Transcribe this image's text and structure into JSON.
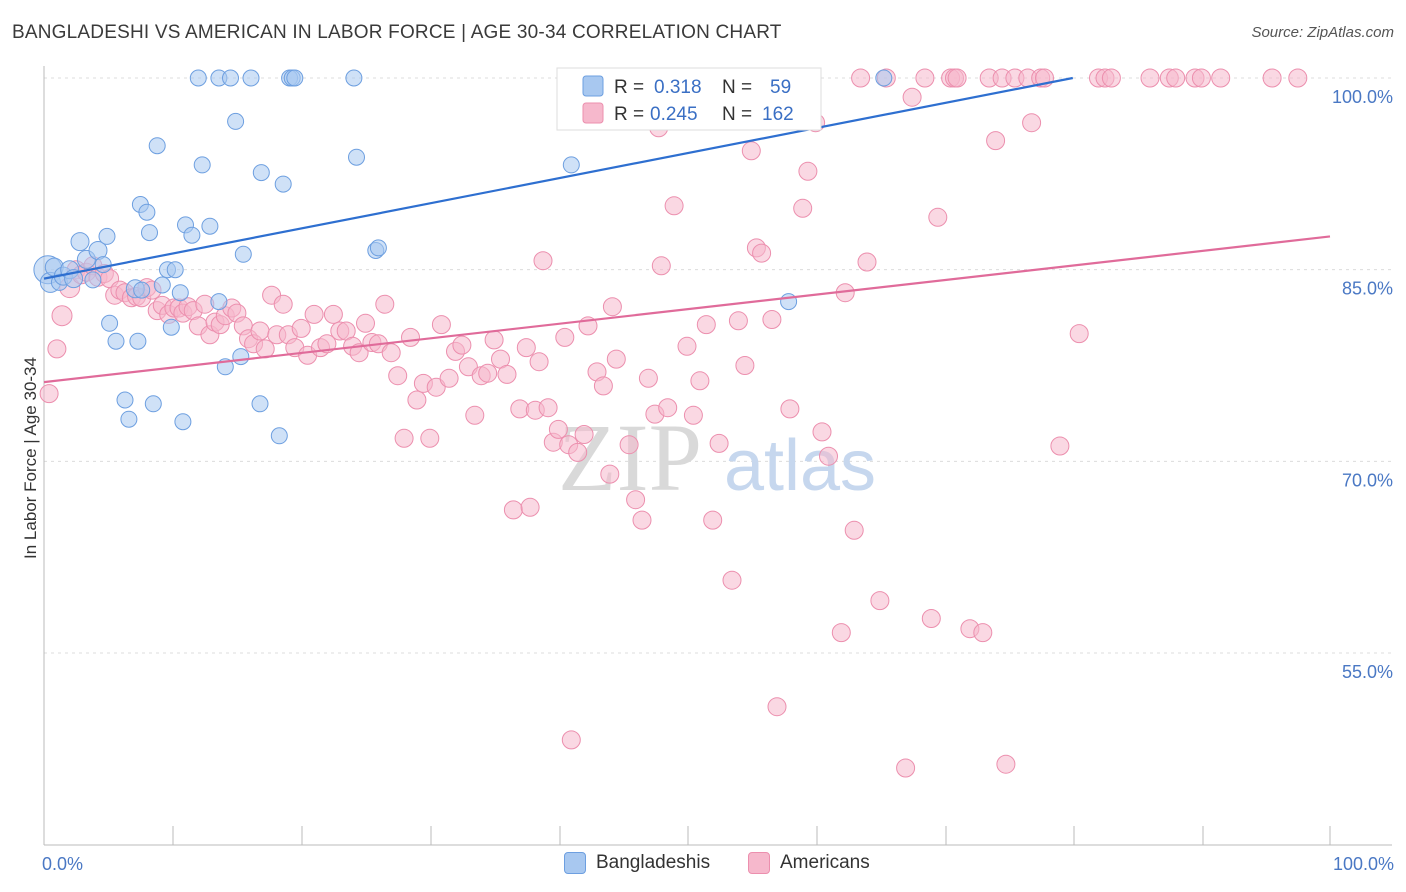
{
  "header": {
    "title": "BANGLADESHI VS AMERICAN IN LABOR FORCE | AGE 30-34 CORRELATION CHART",
    "source": "Source: ZipAtlas.com"
  },
  "watermark": {
    "zip": "ZIP",
    "atlas": "atlas"
  },
  "legend": {
    "r_label": "R =",
    "n_label": "N =",
    "series": [
      {
        "name": "Bangladeshis",
        "r": "0.318",
        "n": "59"
      },
      {
        "name": "Americans",
        "r": "0.245",
        "n": "162"
      }
    ]
  },
  "colors": {
    "blue_fill": "#a8c8f0",
    "blue_stroke": "#6d9fe0",
    "blue_line": "#2e6fd0",
    "pink_fill": "#f6b8cc",
    "pink_stroke": "#ec8fae",
    "pink_line": "#e06b9a",
    "tick": "#4a78c4"
  },
  "chart_data": {
    "type": "scatter",
    "title": "BANGLADESHI VS AMERICAN IN LABOR FORCE | AGE 30-34 CORRELATION CHART",
    "xlabel": "",
    "ylabel": "In Labor Force | Age 30-34",
    "xlim": [
      0,
      100
    ],
    "ylim": [
      40,
      102
    ],
    "x_tick_labels": [
      "0.0%",
      "100.0%"
    ],
    "y_ticks": [
      {
        "value": 100,
        "label": "100.0%"
      },
      {
        "value": 85,
        "label": "85.0%"
      },
      {
        "value": 70,
        "label": "70.0%"
      },
      {
        "value": 55,
        "label": "55.0%"
      }
    ],
    "series": [
      {
        "name": "Bangladeshis",
        "trend": {
          "x0": 0,
          "y0": 84.3,
          "x1": 80,
          "y1": 100
        },
        "points": [
          [
            0.3,
            85.0,
            14
          ],
          [
            0.5,
            84.0,
            10
          ],
          [
            0.8,
            85.2,
            9
          ],
          [
            1.2,
            84.0,
            8
          ],
          [
            1.5,
            84.5,
            9
          ],
          [
            2.0,
            85.0,
            9
          ],
          [
            2.3,
            84.3,
            9
          ],
          [
            2.8,
            87.2,
            9
          ],
          [
            3.3,
            85.8,
            9
          ],
          [
            3.8,
            84.2,
            8
          ],
          [
            4.2,
            86.5,
            9
          ],
          [
            4.6,
            85.4,
            8
          ],
          [
            4.9,
            87.6,
            8
          ],
          [
            5.1,
            80.8,
            8
          ],
          [
            5.6,
            79.4,
            8
          ],
          [
            6.3,
            74.8,
            8
          ],
          [
            6.6,
            73.3,
            8
          ],
          [
            7.1,
            83.5,
            9
          ],
          [
            7.3,
            79.4,
            8
          ],
          [
            7.6,
            83.4,
            8
          ],
          [
            7.5,
            90.1,
            8
          ],
          [
            8.0,
            89.5,
            8
          ],
          [
            8.2,
            87.9,
            8
          ],
          [
            8.5,
            74.5,
            8
          ],
          [
            8.8,
            94.7,
            8
          ],
          [
            9.2,
            83.8,
            8
          ],
          [
            9.6,
            85.0,
            8
          ],
          [
            9.9,
            80.5,
            8
          ],
          [
            10.2,
            85.0,
            8
          ],
          [
            10.6,
            83.2,
            8
          ],
          [
            10.8,
            73.1,
            8
          ],
          [
            11.0,
            88.5,
            8
          ],
          [
            11.5,
            87.7,
            8
          ],
          [
            12.0,
            100.0,
            8
          ],
          [
            12.3,
            93.2,
            8
          ],
          [
            12.9,
            88.4,
            8
          ],
          [
            13.6,
            100.0,
            8
          ],
          [
            13.6,
            82.5,
            8
          ],
          [
            14.1,
            77.4,
            8
          ],
          [
            14.5,
            100.0,
            8
          ],
          [
            14.9,
            96.6,
            8
          ],
          [
            15.3,
            78.2,
            8
          ],
          [
            15.5,
            86.2,
            8
          ],
          [
            16.1,
            100.0,
            8
          ],
          [
            16.8,
            74.5,
            8
          ],
          [
            16.9,
            92.6,
            8
          ],
          [
            18.3,
            72.0,
            8
          ],
          [
            18.6,
            91.7,
            8
          ],
          [
            19.1,
            100.0,
            8
          ],
          [
            19.3,
            100.0,
            8
          ],
          [
            19.5,
            100.0,
            8
          ],
          [
            24.1,
            100.0,
            8
          ],
          [
            24.3,
            93.8,
            8
          ],
          [
            25.8,
            86.5,
            8
          ],
          [
            26.0,
            86.7,
            8
          ],
          [
            41.0,
            93.2,
            8
          ],
          [
            57.9,
            82.5,
            8
          ],
          [
            65.3,
            100.0,
            8
          ]
        ]
      },
      {
        "name": "Americans",
        "trend": {
          "x0": 0,
          "y0": 76.2,
          "x1": 100,
          "y1": 87.6
        },
        "points": [
          [
            0.4,
            75.3,
            9
          ],
          [
            1.0,
            78.8,
            9
          ],
          [
            1.4,
            81.4,
            10
          ],
          [
            2.0,
            83.6,
            10
          ],
          [
            2.5,
            85.0,
            9
          ],
          [
            2.9,
            84.6,
            9
          ],
          [
            3.3,
            84.8,
            9
          ],
          [
            3.8,
            85.3,
            9
          ],
          [
            4.2,
            84.4,
            9
          ],
          [
            4.7,
            84.7,
            9
          ],
          [
            5.1,
            84.3,
            9
          ],
          [
            5.5,
            83.0,
            9
          ],
          [
            5.9,
            83.4,
            9
          ],
          [
            6.3,
            83.2,
            9
          ],
          [
            6.8,
            82.8,
            9
          ],
          [
            7.2,
            82.9,
            9
          ],
          [
            7.6,
            82.8,
            9
          ],
          [
            8.0,
            83.6,
            9
          ],
          [
            8.4,
            83.4,
            9
          ],
          [
            8.8,
            81.8,
            9
          ],
          [
            9.2,
            82.2,
            9
          ],
          [
            9.7,
            81.5,
            9
          ],
          [
            10.1,
            82.0,
            9
          ],
          [
            10.5,
            82.0,
            9
          ],
          [
            10.8,
            81.6,
            9
          ],
          [
            11.2,
            82.1,
            9
          ],
          [
            11.6,
            81.8,
            9
          ],
          [
            12.0,
            80.6,
            9
          ],
          [
            12.5,
            82.3,
            9
          ],
          [
            12.9,
            79.9,
            9
          ],
          [
            13.3,
            80.9,
            9
          ],
          [
            13.7,
            80.7,
            9
          ],
          [
            14.1,
            81.4,
            9
          ],
          [
            14.6,
            82.0,
            9
          ],
          [
            15.0,
            81.6,
            9
          ],
          [
            15.5,
            80.6,
            9
          ],
          [
            15.9,
            79.6,
            9
          ],
          [
            16.3,
            79.2,
            9
          ],
          [
            16.8,
            80.2,
            9
          ],
          [
            17.2,
            78.8,
            9
          ],
          [
            17.7,
            83.0,
            9
          ],
          [
            18.1,
            79.9,
            9
          ],
          [
            18.6,
            82.3,
            9
          ],
          [
            19.0,
            79.9,
            9
          ],
          [
            19.5,
            78.9,
            9
          ],
          [
            20.0,
            80.4,
            9
          ],
          [
            20.5,
            78.3,
            9
          ],
          [
            21.0,
            81.5,
            9
          ],
          [
            21.5,
            78.9,
            9
          ],
          [
            22.0,
            79.2,
            9
          ],
          [
            22.5,
            81.5,
            9
          ],
          [
            23.0,
            80.2,
            9
          ],
          [
            23.5,
            80.2,
            9
          ],
          [
            24.0,
            79.0,
            9
          ],
          [
            24.5,
            78.5,
            9
          ],
          [
            25.0,
            80.8,
            9
          ],
          [
            25.5,
            79.3,
            9
          ],
          [
            26.0,
            79.2,
            9
          ],
          [
            26.5,
            82.3,
            9
          ],
          [
            27.0,
            78.5,
            9
          ],
          [
            27.5,
            76.7,
            9
          ],
          [
            28.0,
            71.8,
            9
          ],
          [
            28.5,
            79.7,
            9
          ],
          [
            29.0,
            74.8,
            9
          ],
          [
            29.5,
            76.1,
            9
          ],
          [
            30.0,
            71.8,
            9
          ],
          [
            30.5,
            75.8,
            9
          ],
          [
            30.9,
            80.7,
            9
          ],
          [
            31.5,
            76.5,
            9
          ],
          [
            32.0,
            78.6,
            9
          ],
          [
            32.5,
            79.1,
            9
          ],
          [
            33.0,
            77.4,
            9
          ],
          [
            33.5,
            73.6,
            9
          ],
          [
            34.0,
            76.7,
            9
          ],
          [
            34.5,
            76.9,
            9
          ],
          [
            35.0,
            79.5,
            9
          ],
          [
            35.5,
            78.0,
            9
          ],
          [
            36.0,
            76.8,
            9
          ],
          [
            36.5,
            66.2,
            9
          ],
          [
            37.0,
            74.1,
            9
          ],
          [
            37.5,
            78.9,
            9
          ],
          [
            37.8,
            66.4,
            9
          ],
          [
            38.2,
            74.0,
            9
          ],
          [
            38.5,
            77.8,
            9
          ],
          [
            38.8,
            85.7,
            9
          ],
          [
            39.2,
            74.2,
            9
          ],
          [
            39.6,
            71.5,
            9
          ],
          [
            40.0,
            72.5,
            9
          ],
          [
            40.5,
            79.7,
            9
          ],
          [
            40.8,
            71.3,
            9
          ],
          [
            41.0,
            48.2,
            9
          ],
          [
            41.5,
            70.7,
            9
          ],
          [
            42.0,
            72.1,
            9
          ],
          [
            42.3,
            80.6,
            9
          ],
          [
            43.0,
            77.0,
            9
          ],
          [
            43.5,
            75.9,
            9
          ],
          [
            44.0,
            69.0,
            9
          ],
          [
            44.2,
            82.1,
            9
          ],
          [
            44.5,
            78.0,
            9
          ],
          [
            45.5,
            71.3,
            9
          ],
          [
            46.0,
            67.0,
            9
          ],
          [
            46.5,
            65.4,
            9
          ],
          [
            47.0,
            76.5,
            9
          ],
          [
            47.5,
            73.7,
            9
          ],
          [
            47.8,
            96.1,
            9
          ],
          [
            48.0,
            85.3,
            9
          ],
          [
            48.5,
            74.2,
            9
          ],
          [
            49.0,
            90.0,
            9
          ],
          [
            50.0,
            79.0,
            9
          ],
          [
            50.5,
            73.6,
            9
          ],
          [
            51.0,
            76.3,
            9
          ],
          [
            51.5,
            80.7,
            9
          ],
          [
            52.0,
            65.4,
            9
          ],
          [
            52.5,
            71.4,
            9
          ],
          [
            53.0,
            100.0,
            9
          ],
          [
            53.5,
            60.7,
            9
          ],
          [
            54.0,
            81.0,
            9
          ],
          [
            54.5,
            77.5,
            9
          ],
          [
            55.0,
            94.3,
            9
          ],
          [
            55.4,
            86.7,
            9
          ],
          [
            55.8,
            86.3,
            9
          ],
          [
            56.0,
            100.0,
            9
          ],
          [
            56.6,
            81.1,
            9
          ],
          [
            57.0,
            50.8,
            9
          ],
          [
            57.5,
            100.0,
            9
          ],
          [
            58.0,
            74.1,
            9
          ],
          [
            58.5,
            100.0,
            9
          ],
          [
            59.0,
            89.8,
            9
          ],
          [
            59.4,
            92.7,
            9
          ],
          [
            60.0,
            96.5,
            9
          ],
          [
            60.5,
            72.3,
            9
          ],
          [
            61.0,
            70.4,
            9
          ],
          [
            62.0,
            56.6,
            9
          ],
          [
            62.3,
            83.2,
            9
          ],
          [
            63.0,
            64.6,
            9
          ],
          [
            63.5,
            100.0,
            9
          ],
          [
            64.0,
            85.6,
            9
          ],
          [
            65.0,
            59.1,
            9
          ],
          [
            65.5,
            100.0,
            9
          ],
          [
            67.0,
            46.0,
            9
          ],
          [
            67.5,
            98.5,
            9
          ],
          [
            68.5,
            100.0,
            9
          ],
          [
            69.0,
            57.7,
            9
          ],
          [
            69.5,
            89.1,
            9
          ],
          [
            70.5,
            100.0,
            9
          ],
          [
            70.8,
            100.0,
            9
          ],
          [
            71.0,
            100.0,
            9
          ],
          [
            72.0,
            56.9,
            9
          ],
          [
            73.0,
            56.6,
            9
          ],
          [
            73.5,
            100.0,
            9
          ],
          [
            74.0,
            95.1,
            9
          ],
          [
            74.5,
            100.0,
            9
          ],
          [
            74.8,
            46.3,
            9
          ],
          [
            75.5,
            100.0,
            9
          ],
          [
            76.5,
            100.0,
            9
          ],
          [
            76.8,
            96.5,
            9
          ],
          [
            77.5,
            100.0,
            9
          ],
          [
            77.8,
            100.0,
            9
          ],
          [
            79.0,
            71.2,
            9
          ],
          [
            80.5,
            80.0,
            9
          ],
          [
            82.0,
            100.0,
            9
          ],
          [
            82.5,
            100.0,
            9
          ],
          [
            83.0,
            100.0,
            9
          ],
          [
            86.0,
            100.0,
            9
          ],
          [
            87.5,
            100.0,
            9
          ],
          [
            88.0,
            100.0,
            9
          ],
          [
            89.5,
            100.0,
            9
          ],
          [
            90.0,
            100.0,
            9
          ],
          [
            91.5,
            100.0,
            9
          ],
          [
            95.5,
            100.0,
            9
          ],
          [
            97.5,
            100.0,
            9
          ]
        ]
      }
    ]
  }
}
